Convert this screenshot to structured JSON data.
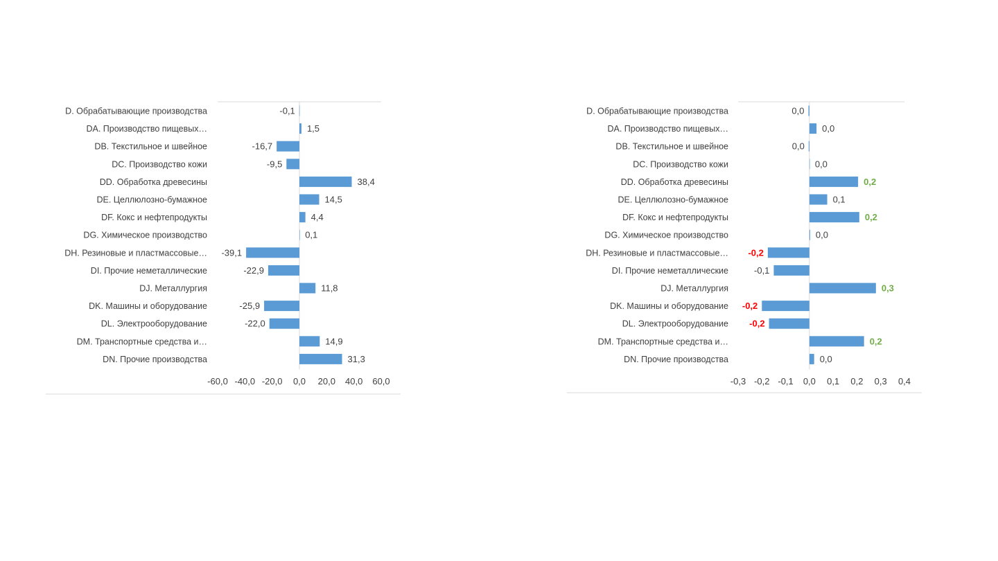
{
  "colors": {
    "bar": "#5b9bd5",
    "text": "#404040",
    "axis": "#d9d9d9",
    "positive_highlight": "#70ad47",
    "negative_highlight": "#ff0000"
  },
  "chart_data": [
    {
      "type": "bar",
      "orientation": "horizontal",
      "categories": [
        "D. Обрабатывающие производства",
        "DA. Производство пищевых…",
        "DB. Текстильное и швейное",
        "DC. Производство кожи",
        "DD. Обработка древесины",
        "DE. Целлюлозно-бумажное",
        "DF. Кокс и нефтепродукты",
        "DG. Химическое производство",
        "DH. Резиновые и пластмассовые…",
        "DI. Прочие неметаллические",
        "DJ. Металлургия",
        "DK. Машины и оборудование",
        "DL. Электрооборудование",
        "DM. Транспортные средства и…",
        "DN. Прочие производства"
      ],
      "values": [
        -0.1,
        1.5,
        -16.7,
        -9.5,
        38.4,
        14.5,
        4.4,
        0.1,
        -39.1,
        -22.9,
        11.8,
        -25.9,
        -22.0,
        14.9,
        31.3
      ],
      "data_labels": [
        "-0,1",
        "1,5",
        "-16,7",
        "-9,5",
        "38,4",
        "14,5",
        "4,4",
        "0,1",
        "-39,1",
        "-22,9",
        "11,8",
        "-25,9",
        "-22,0",
        "14,9",
        "31,3"
      ],
      "label_highlight": [
        "",
        "",
        "",
        "",
        "",
        "",
        "",
        "",
        "",
        "",
        "",
        "",
        "",
        "",
        ""
      ],
      "xlim": [
        -60,
        60
      ],
      "ticks": [
        -60,
        -40,
        -20,
        0,
        20,
        40,
        60
      ],
      "tick_labels": [
        "-60,0",
        "-40,0",
        "-20,0",
        "0,0",
        "20,0",
        "40,0",
        "60,0"
      ],
      "grid": false,
      "legend": "none"
    },
    {
      "type": "bar",
      "orientation": "horizontal",
      "categories": [
        "D. Обрабатывающие производства",
        "DA. Производство пищевых…",
        "DB. Текстильное и швейное",
        "DC. Производство кожи",
        "DD. Обработка древесины",
        "DE. Целлюлозно-бумажное",
        "DF. Кокс и нефтепродукты",
        "DG. Химическое производство",
        "DH. Резиновые и пластмассовые…",
        "DI. Прочие неметаллические",
        "DJ. Металлургия",
        "DK. Машины и оборудование",
        "DL. Электрооборудование",
        "DM. Транспортные средства и…",
        "DN. Прочие производства"
      ],
      "values": [
        -0.004,
        0.03,
        -0.003,
        0.0,
        0.205,
        0.075,
        0.21,
        0.003,
        -0.175,
        -0.15,
        0.28,
        -0.2,
        -0.17,
        0.23,
        0.02
      ],
      "data_labels": [
        "0,0",
        "0,0",
        "0,0",
        "0,0",
        "0,2",
        "0,1",
        "0,2",
        "0,0",
        "-0,2",
        "-0,1",
        "0,3",
        "-0,2",
        "-0,2",
        "0,2",
        "0,0"
      ],
      "label_highlight": [
        "",
        "",
        "",
        "",
        "positive",
        "",
        "positive",
        "",
        "negative",
        "",
        "positive",
        "negative",
        "negative",
        "positive",
        ""
      ],
      "xlim": [
        -0.3,
        0.4
      ],
      "ticks": [
        -0.3,
        -0.2,
        -0.1,
        0.0,
        0.1,
        0.2,
        0.3,
        0.4
      ],
      "tick_labels": [
        "-0,3",
        "-0,2",
        "-0,1",
        "0,0",
        "0,1",
        "0,2",
        "0,3",
        "0,4"
      ],
      "grid": false,
      "legend": "none"
    }
  ]
}
